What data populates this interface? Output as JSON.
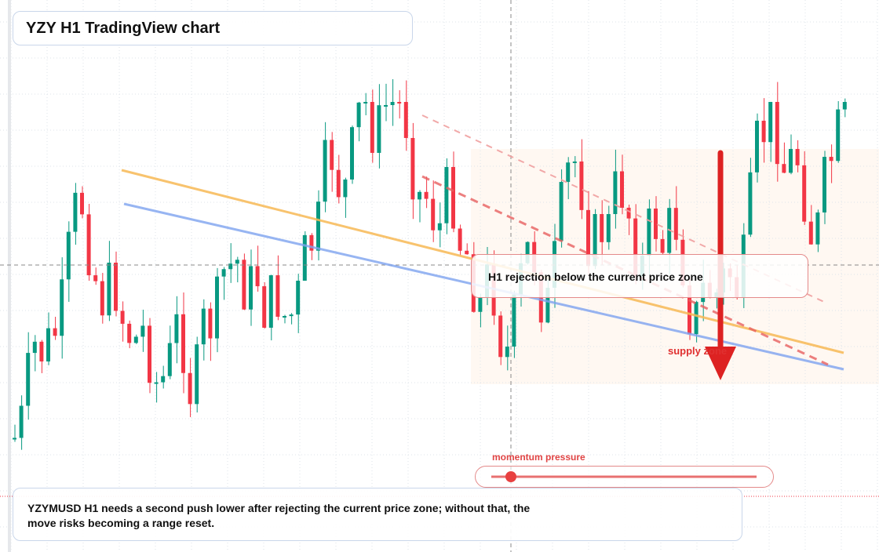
{
  "header": {
    "title": "YZY H1 TradingView chart"
  },
  "annotations": {
    "rejection": "H1 rejection below the current price zone",
    "zone": "supply zone",
    "momentum": "momentum pressure"
  },
  "footer": {
    "text": "YZYMUSD H1 needs a second push lower after rejecting the current price zone; without that, the move risks becoming a range reset."
  }
}
